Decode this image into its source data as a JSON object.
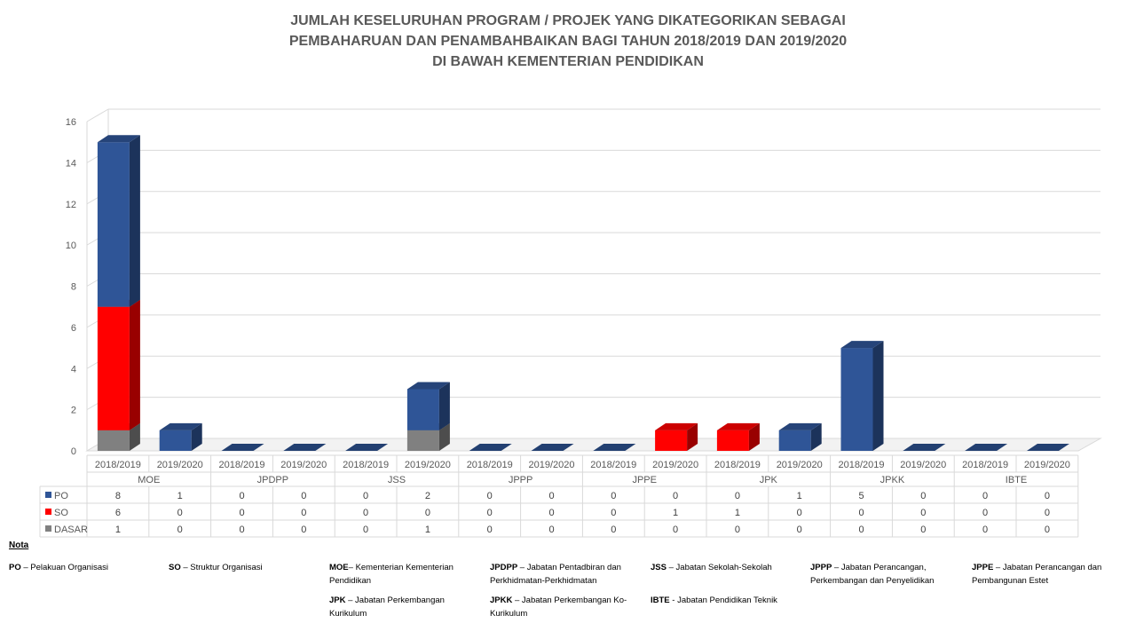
{
  "title_lines": [
    "JUMLAH KESELURUHAN PROGRAM / PROJEK YANG DIKATEGORIKAN SEBAGAI",
    "PEMBAHARUAN DAN PENAMBAHBAIKAN BAGI TAHUN 2018/2019 DAN 2019/2020",
    "DI BAWAH KEMENTERIAN PENDIDIKAN"
  ],
  "chart_data": {
    "type": "bar",
    "stacked": true,
    "three_d": true,
    "title": "JUMLAH KESELURUHAN PROGRAM / PROJEK YANG DIKATEGORIKAN SEBAGAI PEMBAHARUAN DAN PENAMBAHBAIKAN BAGI TAHUN 2018/2019 DAN 2019/2020 DI BAWAH KEMENTERIAN PENDIDIKAN",
    "groups": [
      "MOE",
      "JPDPP",
      "JSS",
      "JPPP",
      "JPPE",
      "JPK",
      "JPKK",
      "IBTE"
    ],
    "years": [
      "2018/2019",
      "2019/2020"
    ],
    "categories": [
      "MOE 2018/2019",
      "MOE 2019/2020",
      "JPDPP 2018/2019",
      "JPDPP 2019/2020",
      "JSS 2018/2019",
      "JSS 2019/2020",
      "JPPP 2018/2019",
      "JPPP 2019/2020",
      "JPPE 2018/2019",
      "JPPE 2019/2020",
      "JPK 2018/2019",
      "JPK 2019/2020",
      "JPKK 2018/2019",
      "JPKK 2019/2020",
      "IBTE 2018/2019",
      "IBTE 2019/2020"
    ],
    "series": [
      {
        "name": "PO",
        "color": "#2f5597",
        "values": [
          8,
          1,
          0,
          0,
          0,
          2,
          0,
          0,
          0,
          0,
          0,
          1,
          5,
          0,
          0,
          0
        ]
      },
      {
        "name": "SO",
        "color": "#ff0000",
        "values": [
          6,
          0,
          0,
          0,
          0,
          0,
          0,
          0,
          0,
          1,
          1,
          0,
          0,
          0,
          0,
          0
        ]
      },
      {
        "name": "DASAR",
        "color": "#808080",
        "values": [
          1,
          0,
          0,
          0,
          0,
          1,
          0,
          0,
          0,
          0,
          0,
          0,
          0,
          0,
          0,
          0
        ]
      }
    ],
    "yticks": [
      0,
      2,
      4,
      6,
      8,
      10,
      12,
      14,
      16
    ],
    "ylim": [
      0,
      16
    ],
    "grid": true,
    "legend": "data-table"
  },
  "notes": {
    "heading": "Nota",
    "items": [
      {
        "abbr": "PO",
        "sep": " – ",
        "text": "Pelakuan Organisasi"
      },
      {
        "abbr": "SO",
        "sep": " – ",
        "text": "Struktur Organisasi"
      },
      {
        "abbr": "MOE",
        "sep": "– ",
        "text": "Kementerian Kementerian Pendidikan"
      },
      {
        "abbr": "JPDPP",
        "sep": " – ",
        "text": "Jabatan Pentadbiran dan Perkhidmatan-Perkhidmatan"
      },
      {
        "abbr": "JSS",
        "sep": " – ",
        "text": "Jabatan Sekolah-Sekolah"
      },
      {
        "abbr": "JPPP",
        "sep": " – ",
        "text": "Jabatan Perancangan, Perkembangan dan Penyelidikan"
      },
      {
        "abbr": "JPPE",
        "sep": " – ",
        "text": "Jabatan Perancangan dan Pembangunan Estet"
      },
      {
        "abbr": "JPK",
        "sep": " – ",
        "text": "Jabatan Perkembangan Kurikulum"
      },
      {
        "abbr": "JPKK",
        "sep": " – ",
        "text": "Jabatan Perkembangan Ko-Kurikulum"
      },
      {
        "abbr": "IBTE",
        "sep": " - ",
        "text": "Jabatan Pendidikan Teknik"
      }
    ]
  }
}
